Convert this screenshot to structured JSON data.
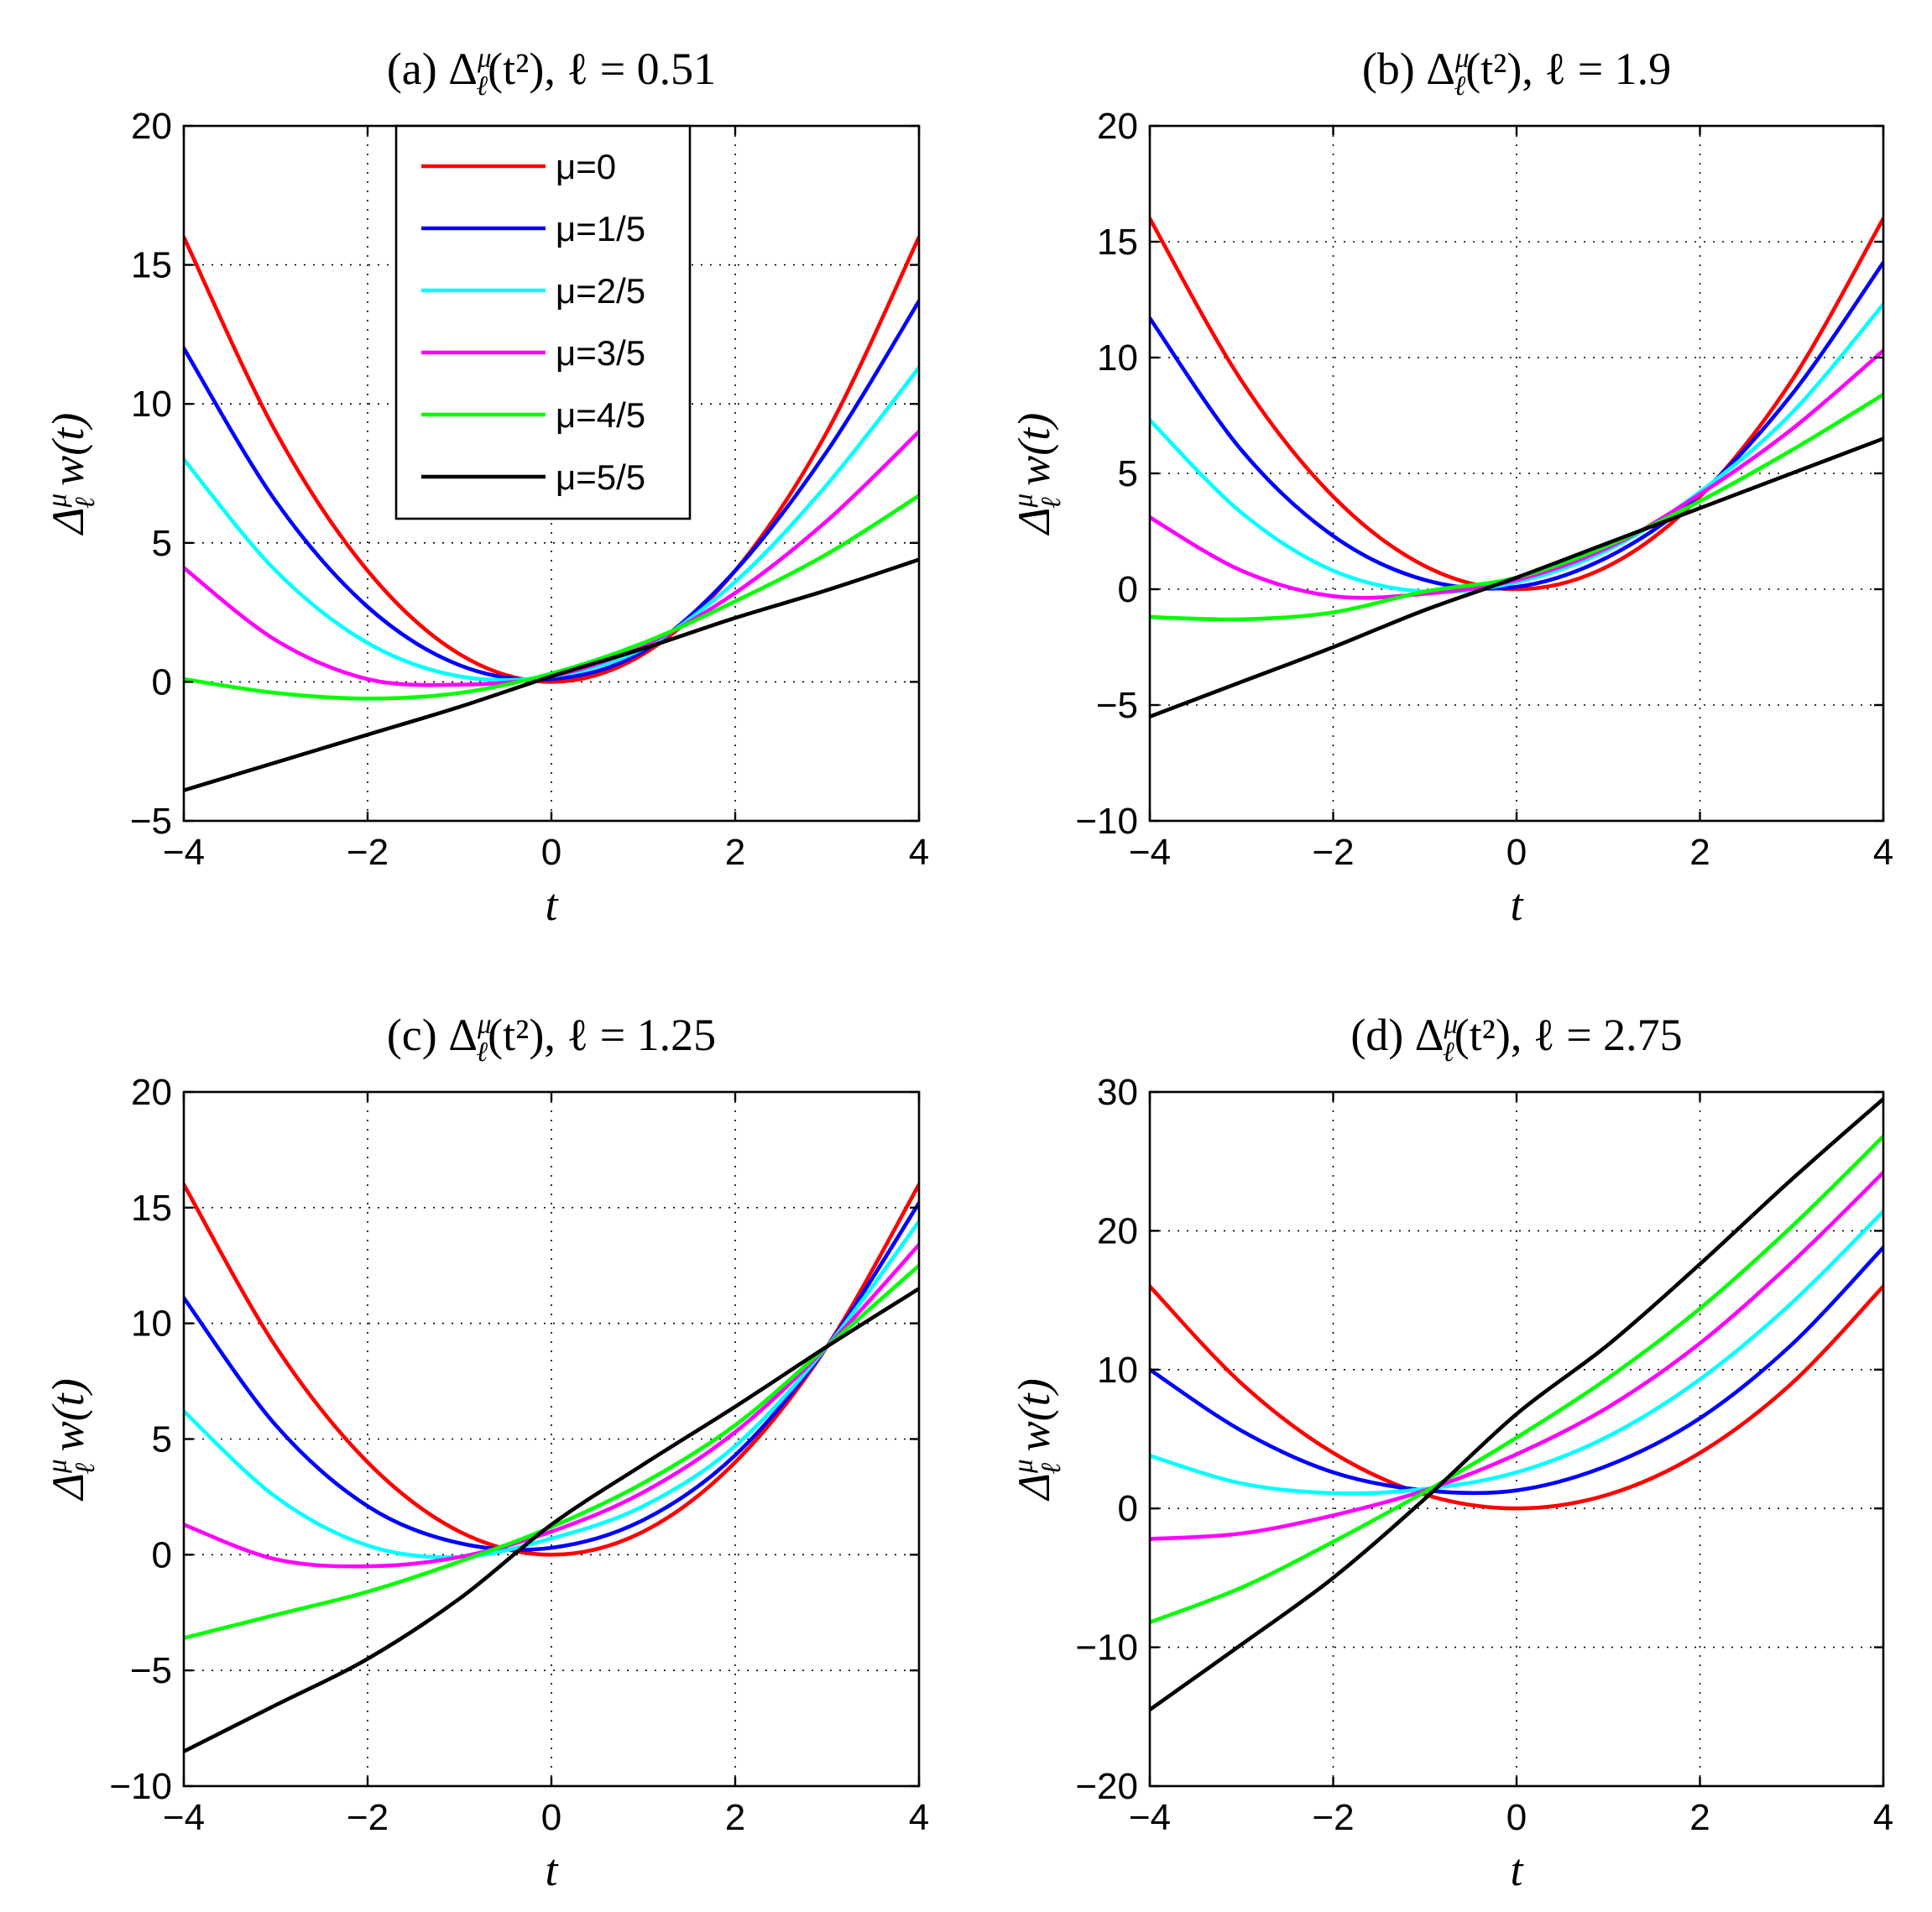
{
  "chart_data": [
    {
      "type": "line",
      "title": "(a) Δ_ℓ^μ(t²), ℓ = 0.51",
      "xlabel": "t",
      "ylabel": "Δ_ℓ^μ w(t)",
      "xlim": [
        -4,
        4
      ],
      "ylim": [
        -5,
        20
      ],
      "xticks": [
        -4,
        -2,
        0,
        2,
        4
      ],
      "yticks": [
        -5,
        0,
        5,
        10,
        15,
        20
      ],
      "grid": true,
      "legend": "top-center",
      "x": [
        -4,
        -3,
        -2,
        -1,
        0,
        1,
        2,
        3,
        4
      ],
      "series": [
        {
          "name": "μ=0",
          "color": "#ff0000",
          "values": [
            16,
            9,
            4,
            1,
            0,
            1,
            4,
            9,
            16
          ]
        },
        {
          "name": "μ=1/5",
          "color": "#0000ff",
          "values": [
            12,
            6.5,
            2.7,
            0.6,
            0.1,
            1.1,
            4.0,
            8.3,
            13.7
          ]
        },
        {
          "name": "μ=2/5",
          "color": "#00ffff",
          "values": [
            8,
            4.0,
            1.4,
            0.2,
            0.2,
            1.2,
            3.6,
            7.1,
            11.3
          ]
        },
        {
          "name": "μ=3/5",
          "color": "#ff00ff",
          "values": [
            4.1,
            1.5,
            0.1,
            -0.1,
            0.2,
            1.3,
            3.2,
            5.8,
            9.0
          ]
        },
        {
          "name": "μ=4/5",
          "color": "#00ff00",
          "values": [
            0.1,
            -0.4,
            -0.6,
            -0.4,
            0.3,
            1.4,
            2.9,
            4.6,
            6.7
          ]
        },
        {
          "name": "μ=5/5",
          "color": "#000000",
          "values": [
            -3.9,
            -2.9,
            -1.9,
            -0.9,
            0.2,
            1.2,
            2.3,
            3.3,
            4.4
          ]
        }
      ]
    },
    {
      "type": "line",
      "title": "(b) Δ_ℓ^μ(t²), ℓ = 1.9",
      "xlabel": "t",
      "ylabel": "Δ_ℓ^μ w(t)",
      "xlim": [
        -4,
        4
      ],
      "ylim": [
        -10,
        20
      ],
      "xticks": [
        -4,
        -2,
        0,
        2,
        4
      ],
      "yticks": [
        -10,
        -5,
        0,
        5,
        10,
        15,
        20
      ],
      "grid": true,
      "x": [
        -4,
        -3,
        -2,
        -1,
        0,
        1,
        2,
        3,
        4
      ],
      "series": [
        {
          "name": "μ=0",
          "color": "#ff0000",
          "values": [
            16,
            9,
            4,
            1,
            0,
            1,
            4,
            9,
            16
          ]
        },
        {
          "name": "μ=1/5",
          "color": "#0000ff",
          "values": [
            11.7,
            6.0,
            2.3,
            0.4,
            0.1,
            1.4,
            4.1,
            8.4,
            14.1
          ]
        },
        {
          "name": "μ=2/5",
          "color": "#00ffff",
          "values": [
            7.3,
            3.3,
            0.8,
            -0.1,
            0.3,
            1.7,
            4.2,
            7.6,
            12.3
          ]
        },
        {
          "name": "μ=3/5",
          "color": "#ff00ff",
          "values": [
            3.1,
            0.8,
            -0.3,
            -0.2,
            0.4,
            1.8,
            4.1,
            6.9,
            10.3
          ]
        },
        {
          "name": "μ=4/5",
          "color": "#00ff00",
          "values": [
            -1.2,
            -1.3,
            -1.0,
            -0.1,
            0.5,
            1.9,
            3.8,
            6.0,
            8.4
          ]
        },
        {
          "name": "μ=5/5",
          "color": "#000000",
          "values": [
            -5.5,
            -4.0,
            -2.5,
            -0.9,
            0.5,
            2.0,
            3.5,
            5.0,
            6.5
          ]
        }
      ]
    },
    {
      "type": "line",
      "title": "(c) Δ_ℓ^μ(t²), ℓ = 1.25",
      "xlabel": "t",
      "ylabel": "Δ_ℓ^μ w(t)",
      "xlim": [
        -4,
        4
      ],
      "ylim": [
        -10,
        20
      ],
      "xticks": [
        -4,
        -2,
        0,
        2,
        4
      ],
      "yticks": [
        -10,
        -5,
        0,
        5,
        10,
        15,
        20
      ],
      "grid": true,
      "x": [
        -4,
        -3,
        -2,
        -1,
        0,
        1,
        2,
        3,
        4
      ],
      "series": [
        {
          "name": "μ=0",
          "color": "#ff0000",
          "values": [
            16,
            9,
            4,
            1,
            0,
            1,
            4,
            9,
            16
          ]
        },
        {
          "name": "μ=1/5",
          "color": "#0000ff",
          "values": [
            11.1,
            5.6,
            2.1,
            0.5,
            0.3,
            1.5,
            4.3,
            9.0,
            15.2
          ]
        },
        {
          "name": "μ=2/5",
          "color": "#00ffff",
          "values": [
            6.2,
            2.5,
            0.4,
            -0.1,
            0.7,
            2.1,
            4.7,
            9.0,
            14.4
          ]
        },
        {
          "name": "μ=3/5",
          "color": "#ff00ff",
          "values": [
            1.3,
            -0.2,
            -0.5,
            -0.1,
            1.0,
            2.7,
            5.3,
            9.0,
            13.4
          ]
        },
        {
          "name": "μ=4/5",
          "color": "#00ff00",
          "values": [
            -3.6,
            -2.6,
            -1.6,
            -0.3,
            1.2,
            3.1,
            5.6,
            9.0,
            12.5
          ]
        },
        {
          "name": "μ=5/5",
          "color": "#000000",
          "values": [
            -8.5,
            -6.5,
            -4.5,
            -1.9,
            1.3,
            3.9,
            6.4,
            9.0,
            11.5
          ]
        }
      ]
    },
    {
      "type": "line",
      "title": "(d) Δ_ℓ^μ(t²), ℓ = 2.75",
      "xlabel": "t",
      "ylabel": "Δ_ℓ^μ w(t)",
      "xlim": [
        -4,
        4
      ],
      "ylim": [
        -20,
        30
      ],
      "xticks": [
        -4,
        -2,
        0,
        2,
        4
      ],
      "yticks": [
        -20,
        -10,
        0,
        10,
        20,
        30
      ],
      "grid": true,
      "x": [
        -4,
        -3,
        -2,
        -1,
        0,
        1,
        2,
        3,
        4
      ],
      "series": [
        {
          "name": "μ=0",
          "color": "#ff0000",
          "values": [
            16,
            9,
            4,
            1,
            0,
            1,
            4,
            9,
            16
          ]
        },
        {
          "name": "μ=1/5",
          "color": "#0000ff",
          "values": [
            10.0,
            5.6,
            2.6,
            1.3,
            1.3,
            3.1,
            6.5,
            11.8,
            18.8
          ]
        },
        {
          "name": "μ=2/5",
          "color": "#00ffff",
          "values": [
            3.8,
            1.8,
            1.1,
            1.4,
            2.6,
            5.2,
            9.3,
            14.8,
            21.4
          ]
        },
        {
          "name": "μ=3/5",
          "color": "#ff00ff",
          "values": [
            -2.2,
            -1.8,
            -0.5,
            1.3,
            3.9,
            7.3,
            11.9,
            17.7,
            24.2
          ]
        },
        {
          "name": "μ=4/5",
          "color": "#00ff00",
          "values": [
            -8.2,
            -5.7,
            -2.4,
            1.2,
            5.1,
            9.4,
            14.4,
            20.3,
            26.8
          ]
        },
        {
          "name": "μ=5/5",
          "color": "#000000",
          "values": [
            -14.5,
            -9.8,
            -5.0,
            0.7,
            6.8,
            11.8,
            17.6,
            23.7,
            29.5
          ]
        }
      ]
    }
  ]
}
